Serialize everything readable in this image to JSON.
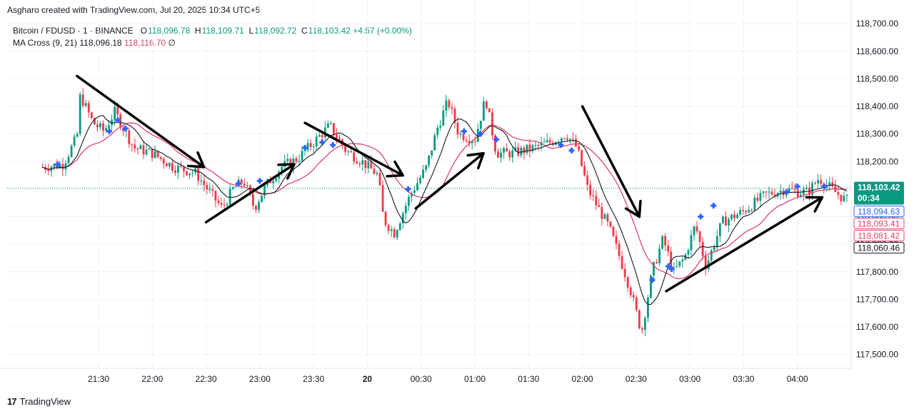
{
  "credit": "Asgharo created with TradingView.com, Jul 20, 2025 10:34 UTC+5",
  "legend": {
    "symbol": "Bitcoin / FDUSD · 1 · BINANCE",
    "o_label": "O",
    "o": "118,096.78",
    "h_label": "H",
    "h": "118,109.71",
    "l_label": "L",
    "l": "118,092.72",
    "c_label": "C",
    "c": "118,103.42",
    "change": "+4.57 (+0.00%)",
    "indicator": "MA Cross (9, 21)",
    "ma_fast": "118,096.18",
    "ma_slow": "118,116.70",
    "ma_symbol": "∅"
  },
  "branding": {
    "logo_text": "TradingView"
  },
  "colors": {
    "up": "#089981",
    "down": "#f23645",
    "ma_fast": "#131722",
    "ma_slow": "#e0446a",
    "cross": "#2962ff",
    "arrow": "#000000"
  },
  "chart_data": {
    "type": "candlestick",
    "ylim": [
      117450,
      118760
    ],
    "y_ticks": [
      "118,700.00",
      "118,600.00",
      "118,500.00",
      "118,400.00",
      "118,300.00",
      "118,200.00",
      "118,100.00",
      "118,000.00",
      "117,900.00",
      "117,800.00",
      "117,700.00",
      "117,600.00",
      "117,500.00"
    ],
    "y_tick_values": [
      118700,
      118600,
      118500,
      118400,
      118300,
      118200,
      118100,
      118000,
      117900,
      117800,
      117700,
      117600,
      117500
    ],
    "x_ticks": [
      {
        "label": "21:30",
        "t": 0.5
      },
      {
        "label": "22:00",
        "t": 1.0
      },
      {
        "label": "22:30",
        "t": 1.5
      },
      {
        "label": "23:00",
        "t": 2.0
      },
      {
        "label": "23:30",
        "t": 2.5
      },
      {
        "label": "20",
        "t": 3.0,
        "bold": true
      },
      {
        "label": "00:30",
        "t": 3.5
      },
      {
        "label": "01:00",
        "t": 4.0
      },
      {
        "label": "01:30",
        "t": 4.5
      },
      {
        "label": "02:00",
        "t": 5.0
      },
      {
        "label": "02:30",
        "t": 5.5
      },
      {
        "label": "03:00",
        "t": 6.0
      },
      {
        "label": "03:30",
        "t": 6.5
      },
      {
        "label": "04:00",
        "t": 7.0
      }
    ],
    "time_range": [
      -0.35,
      7.5
    ],
    "price_path": [
      [
        0.0,
        118180
      ],
      [
        0.17,
        118190
      ],
      [
        0.3,
        118290
      ],
      [
        0.33,
        118440
      ],
      [
        0.45,
        118340
      ],
      [
        0.55,
        118310
      ],
      [
        0.65,
        118380
      ],
      [
        0.72,
        118330
      ],
      [
        0.83,
        118250
      ],
      [
        1.0,
        118230
      ],
      [
        1.2,
        118180
      ],
      [
        1.4,
        118160
      ],
      [
        1.55,
        118080
      ],
      [
        1.65,
        118030
      ],
      [
        1.75,
        118100
      ],
      [
        1.85,
        118130
      ],
      [
        1.95,
        118030
      ],
      [
        2.05,
        118110
      ],
      [
        2.2,
        118180
      ],
      [
        2.35,
        118210
      ],
      [
        2.5,
        118270
      ],
      [
        2.65,
        118330
      ],
      [
        2.8,
        118240
      ],
      [
        2.95,
        118200
      ],
      [
        3.1,
        118150
      ],
      [
        3.15,
        117990
      ],
      [
        3.25,
        117940
      ],
      [
        3.4,
        118080
      ],
      [
        3.55,
        118180
      ],
      [
        3.65,
        118320
      ],
      [
        3.75,
        118420
      ],
      [
        3.85,
        118300
      ],
      [
        4.0,
        118280
      ],
      [
        4.1,
        118430
      ],
      [
        4.2,
        118230
      ],
      [
        4.35,
        118230
      ],
      [
        4.55,
        118250
      ],
      [
        4.7,
        118270
      ],
      [
        4.85,
        118300
      ],
      [
        4.95,
        118250
      ],
      [
        5.05,
        118100
      ],
      [
        5.15,
        118030
      ],
      [
        5.25,
        117960
      ],
      [
        5.35,
        117850
      ],
      [
        5.45,
        117730
      ],
      [
        5.55,
        117580
      ],
      [
        5.65,
        117800
      ],
      [
        5.75,
        117920
      ],
      [
        5.85,
        117800
      ],
      [
        5.95,
        117850
      ],
      [
        6.05,
        117970
      ],
      [
        6.15,
        117820
      ],
      [
        6.3,
        117980
      ],
      [
        6.5,
        118020
      ],
      [
        6.7,
        118080
      ],
      [
        6.9,
        118100
      ],
      [
        7.0,
        118090
      ],
      [
        7.1,
        118090
      ],
      [
        7.2,
        118140
      ],
      [
        7.35,
        118090
      ],
      [
        7.45,
        118060
      ]
    ],
    "ma_fast": {
      "name": "MA 9",
      "period_samples": 9
    },
    "ma_slow": {
      "name": "MA 21",
      "period_samples": 21
    },
    "last_price": {
      "value": 118103.42,
      "label": "118,103.42",
      "countdown": "00:34"
    },
    "price_labels": [
      {
        "value": 118094.63,
        "label": "118,094.63",
        "style": "blue"
      },
      {
        "value": 118093.41,
        "label": "118,093.41",
        "style": "pink"
      },
      {
        "value": 118081.42,
        "label": "118,081.42",
        "style": "pink"
      },
      {
        "value": 118060.46,
        "label": "118,060.46",
        "style": "dark"
      }
    ],
    "cross_markers": [
      [
        0.12,
        118190
      ],
      [
        0.6,
        118310
      ],
      [
        0.68,
        118350
      ],
      [
        0.75,
        118320
      ],
      [
        1.8,
        118120
      ],
      [
        2.0,
        118130
      ],
      [
        2.42,
        118250
      ],
      [
        2.58,
        118270
      ],
      [
        2.68,
        118260
      ],
      [
        3.38,
        118100
      ],
      [
        3.9,
        118310
      ],
      [
        4.05,
        118300
      ],
      [
        4.2,
        118280
      ],
      [
        4.8,
        118260
      ],
      [
        4.9,
        118240
      ],
      [
        5.65,
        117770
      ],
      [
        5.8,
        117820
      ],
      [
        5.83,
        117810
      ],
      [
        6.1,
        118000
      ],
      [
        6.22,
        118040
      ],
      [
        6.9,
        118090
      ],
      [
        7.0,
        118110
      ],
      [
        7.25,
        118110
      ]
    ],
    "arrows": [
      [
        [
          0.3,
          118510
        ],
        [
          1.48,
          118180
        ]
      ],
      [
        [
          1.5,
          117980
        ],
        [
          2.32,
          118190
        ]
      ],
      [
        [
          2.42,
          118340
        ],
        [
          3.33,
          118150
        ]
      ],
      [
        [
          3.45,
          118030
        ],
        [
          4.08,
          118230
        ]
      ],
      [
        [
          5.0,
          118400
        ],
        [
          5.53,
          118000
        ]
      ],
      [
        [
          5.78,
          117730
        ],
        [
          7.23,
          118070
        ]
      ]
    ]
  }
}
